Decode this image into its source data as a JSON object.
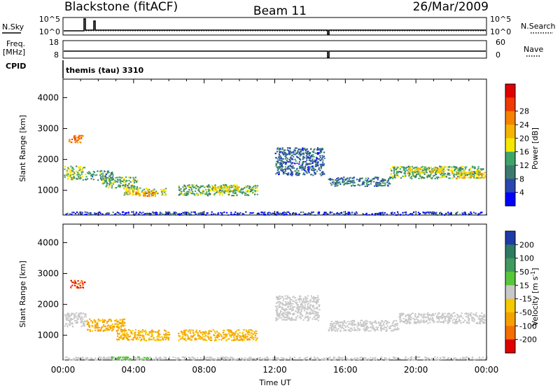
{
  "header": {
    "station": "Blackstone (fitACF)",
    "beam": "Beam 11",
    "date": "26/Mar/2009"
  },
  "top_panels": {
    "nsky_label": "N.Sky",
    "nsearch_label": "N.Search",
    "nsky_ticks": [
      "10^5",
      "10^0"
    ],
    "nsearch_ticks": [
      "10^5",
      "10^0"
    ],
    "freq_label_line1": "Freq.",
    "freq_label_line2": "[MHz]",
    "freq_ticks": [
      "18",
      "8"
    ],
    "nave_label": "Nave",
    "nave_ticks": [
      "60",
      "0"
    ],
    "cpid_label": "CPID",
    "cpid_value": "themis (tau) 3310"
  },
  "chart_data": [
    {
      "type": "heatmap",
      "name": "power",
      "ylabel": "Slant Range [km]",
      "xlabel": "",
      "ylim": [
        200,
        4600
      ],
      "yticks": [
        "1000",
        "2000",
        "3000",
        "4000"
      ],
      "xlim_hours": [
        0,
        24
      ],
      "colorbar_label": "Power [dB]",
      "colorbar_ticks": [
        "4",
        "8",
        "12",
        "16",
        "20",
        "24",
        "28"
      ],
      "colorbar_colors": [
        "#0000ff",
        "#2a47b0",
        "#3d7a6e",
        "#3fa46a",
        "#f5e700",
        "#f5b400",
        "#f58300",
        "#ef3a00",
        "#e00000"
      ],
      "blobs": [
        {
          "t0": 0.05,
          "t1": 1.2,
          "r0": 1350,
          "r1": 1800,
          "v": 16
        },
        {
          "t0": 0.3,
          "t1": 1.1,
          "r0": 2550,
          "r1": 2800,
          "v": 26
        },
        {
          "t0": 1.2,
          "t1": 2.8,
          "r0": 1350,
          "r1": 1650,
          "v": 12
        },
        {
          "t0": 2.2,
          "t1": 4.2,
          "r0": 1100,
          "r1": 1450,
          "v": 14
        },
        {
          "t0": 3.4,
          "t1": 5.8,
          "r0": 850,
          "r1": 1100,
          "v": 18
        },
        {
          "t0": 4.0,
          "t1": 5.2,
          "r0": 830,
          "r1": 980,
          "v": 25
        },
        {
          "t0": 6.5,
          "t1": 11.0,
          "r0": 850,
          "r1": 1200,
          "v": 14
        },
        {
          "t0": 8.3,
          "t1": 10.0,
          "r0": 950,
          "r1": 1150,
          "v": 18
        },
        {
          "t0": 12.0,
          "t1": 14.8,
          "r0": 1500,
          "r1": 2400,
          "v": 8
        },
        {
          "t0": 15.0,
          "t1": 18.5,
          "r0": 1150,
          "r1": 1450,
          "v": 9
        },
        {
          "t0": 18.5,
          "t1": 23.8,
          "r0": 1400,
          "r1": 1800,
          "v": 13
        },
        {
          "t0": 19.5,
          "t1": 21.5,
          "r0": 1550,
          "r1": 1750,
          "v": 19
        },
        {
          "t0": 22.0,
          "t1": 23.9,
          "r0": 1400,
          "r1": 1650,
          "v": 20
        },
        {
          "t0": 0.0,
          "t1": 24.0,
          "r0": 220,
          "r1": 320,
          "v": 5
        }
      ]
    },
    {
      "type": "heatmap",
      "name": "velocity",
      "ylabel": "Slant Range [km]",
      "xlabel": "Time UT",
      "ylim": [
        200,
        4600
      ],
      "yticks": [
        "1000",
        "2000",
        "3000",
        "4000"
      ],
      "xticks": [
        "00:00",
        "04:00",
        "08:00",
        "12:00",
        "16:00",
        "20:00",
        "00:00"
      ],
      "xlim_hours": [
        0,
        24
      ],
      "colorbar_label": "Velocity [m s-1]",
      "colorbar_ticks": [
        "200",
        "100",
        "50",
        "15",
        "-15",
        "-50",
        "-100",
        "-200"
      ],
      "colorbar_colors": [
        "#1e3ca8",
        "#2f7a62",
        "#3f9a5e",
        "#58c63b",
        "#c8c8c8",
        "#f5c800",
        "#f5a000",
        "#f56e00",
        "#e00000"
      ],
      "blobs": [
        {
          "t0": 0.05,
          "t1": 1.3,
          "r0": 1300,
          "r1": 1750,
          "v": 0
        },
        {
          "t0": 0.4,
          "t1": 1.2,
          "r0": 2550,
          "r1": 2800,
          "v": -200
        },
        {
          "t0": 1.3,
          "t1": 3.5,
          "r0": 1150,
          "r1": 1550,
          "v": -60
        },
        {
          "t0": 3.0,
          "t1": 6.0,
          "r0": 850,
          "r1": 1200,
          "v": -55
        },
        {
          "t0": 6.5,
          "t1": 11.0,
          "r0": 850,
          "r1": 1200,
          "v": -50
        },
        {
          "t0": 12.0,
          "t1": 14.5,
          "r0": 1500,
          "r1": 2300,
          "v": 0
        },
        {
          "t0": 15.0,
          "t1": 19.0,
          "r0": 1150,
          "r1": 1500,
          "v": 0
        },
        {
          "t0": 19.0,
          "t1": 23.9,
          "r0": 1400,
          "r1": 1750,
          "v": 0
        },
        {
          "t0": 0.0,
          "t1": 24.0,
          "r0": 220,
          "r1": 320,
          "v": 0
        },
        {
          "t0": 2.6,
          "t1": 4.8,
          "r0": 220,
          "r1": 320,
          "v": 30
        }
      ]
    }
  ]
}
